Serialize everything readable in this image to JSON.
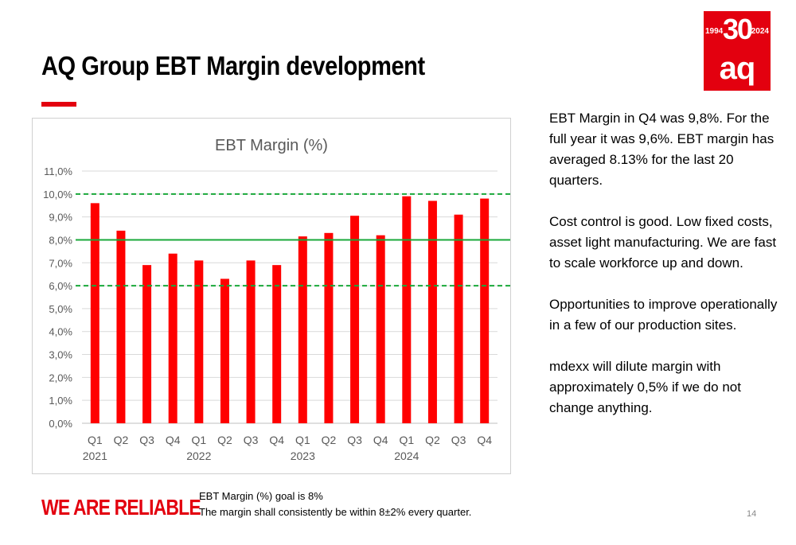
{
  "slide": {
    "title": "AQ Group EBT Margin development",
    "tagline": "WE ARE RELIABLE",
    "page_number": "14",
    "brand_color": "#e3000f"
  },
  "logo": {
    "year_start": "1994",
    "number": "30",
    "year_end": "2024",
    "brand": "aq"
  },
  "side_text": [
    "EBT Margin in Q4 was 9,8%. For the full year it was 9,6%. EBT margin has averaged 8.13% for the last 20 quarters.",
    "Cost control is good. Low fixed costs, asset light manufacturing. We are fast to scale workforce up and down.",
    "Opportunities to improve operationally in a few of our production sites.",
    "mdexx will dilute margin with approximately 0,5% if we do not change anything."
  ],
  "goal_note": {
    "line1": "EBT Margin (%) goal is 8%",
    "line2": "The margin shall consistently be within 8±2% every quarter."
  },
  "chart_data": {
    "type": "bar",
    "title": "EBT Margin (%)",
    "categories": [
      "Q1",
      "Q2",
      "Q3",
      "Q4",
      "Q1",
      "Q2",
      "Q3",
      "Q4",
      "Q1",
      "Q2",
      "Q3",
      "Q4",
      "Q1",
      "Q2",
      "Q3",
      "Q4"
    ],
    "years": [
      {
        "label": "2021",
        "start_index": 0
      },
      {
        "label": "2022",
        "start_index": 4
      },
      {
        "label": "2023",
        "start_index": 8
      },
      {
        "label": "2024",
        "start_index": 12
      }
    ],
    "values": [
      9.6,
      8.4,
      6.9,
      7.4,
      7.1,
      6.3,
      7.1,
      6.9,
      8.15,
      8.3,
      9.05,
      8.2,
      9.9,
      9.7,
      9.1,
      9.8
    ],
    "ylim": [
      0,
      11
    ],
    "yticks": [
      "0,0%",
      "1,0%",
      "2,0%",
      "3,0%",
      "4,0%",
      "5,0%",
      "6,0%",
      "7,0%",
      "8,0%",
      "9,0%",
      "10,0%",
      "11,0%"
    ],
    "reference_lines": [
      {
        "value": 10,
        "style": "dashed",
        "color": "#1aa83a"
      },
      {
        "value": 8,
        "style": "solid",
        "color": "#1aa83a"
      },
      {
        "value": 6,
        "style": "dashed",
        "color": "#1aa83a"
      }
    ],
    "bar_color": "#ff0000",
    "grid": true,
    "legend": "none"
  }
}
